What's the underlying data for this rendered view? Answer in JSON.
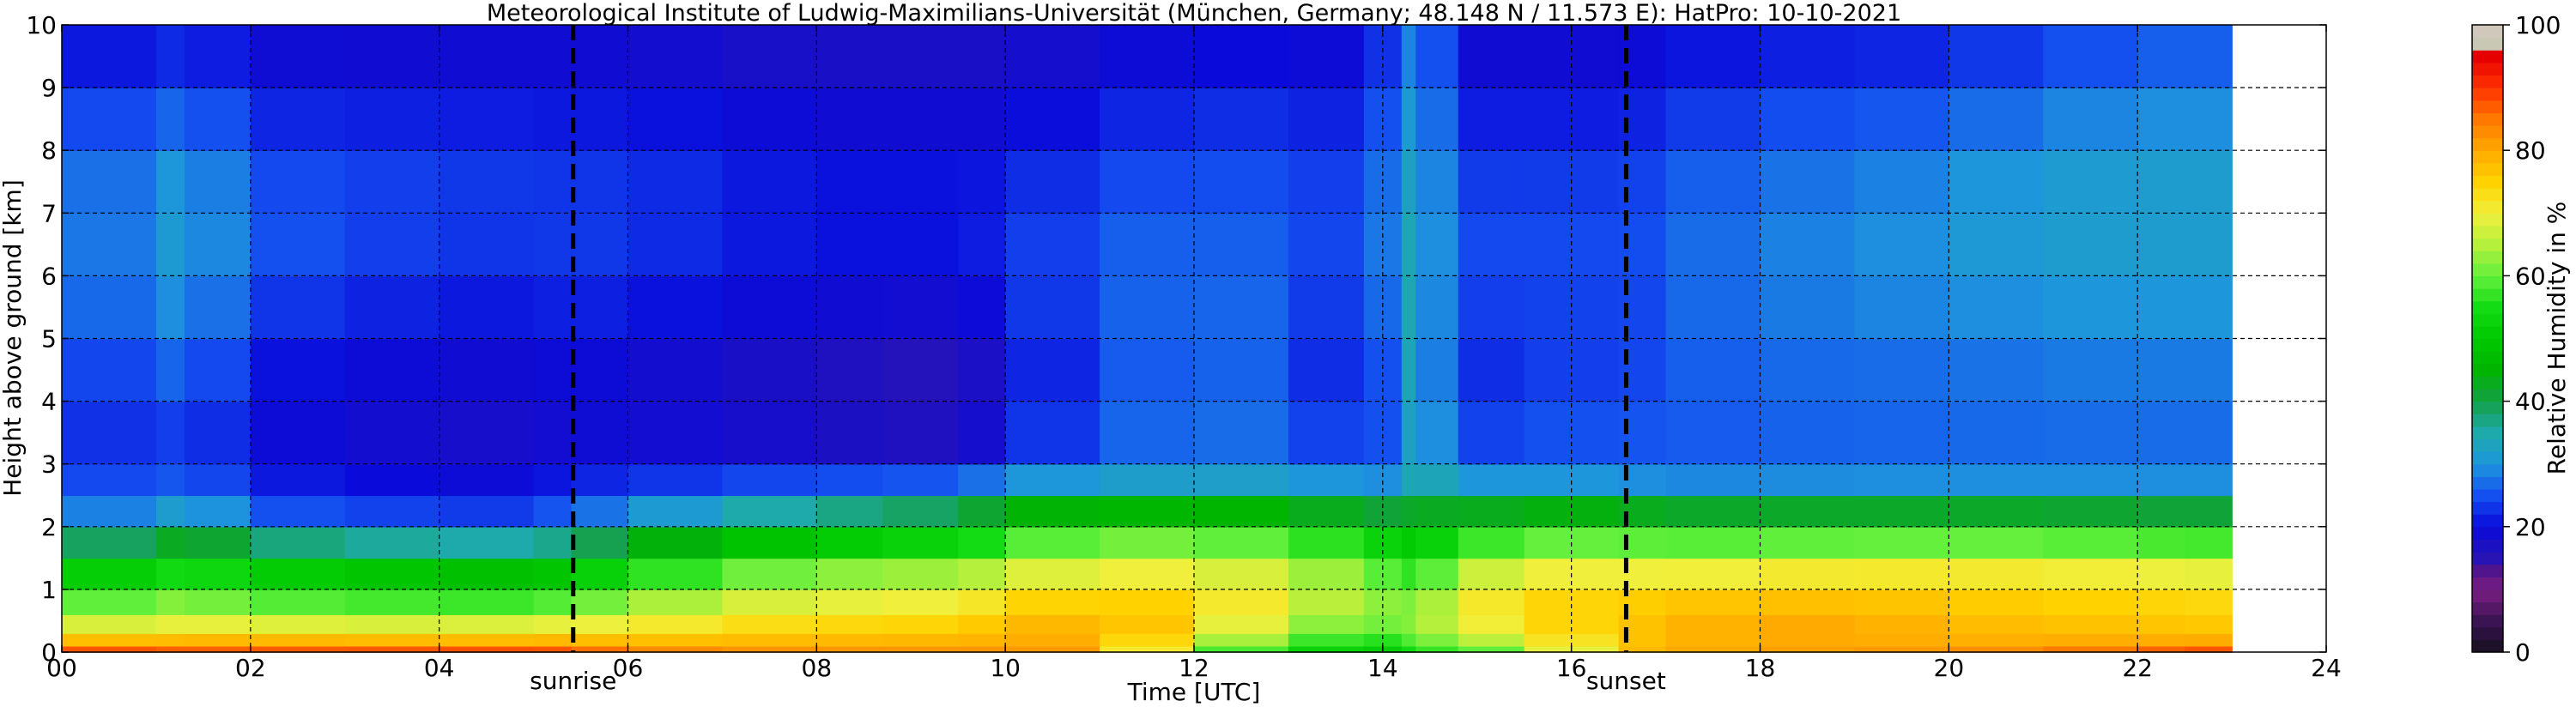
{
  "chart_data": {
    "type": "heatmap",
    "title": "Meteorological Institute of Ludwig-Maximilians-Universität (München, Germany; 48.148 N / 11.573 E):    HatPro: 10-10-2021",
    "xlabel": "Time [UTC]",
    "ylabel": "Height above ground [km]",
    "colorbar_label": "Relative Humidity in %",
    "xlim": [
      0,
      24
    ],
    "ylim": [
      0,
      10
    ],
    "x_ticks": [
      0,
      2,
      4,
      6,
      8,
      10,
      12,
      14,
      16,
      18,
      20,
      22,
      24
    ],
    "x_tick_labels": [
      "00",
      "02",
      "04",
      "06",
      "08",
      "10",
      "12",
      "14",
      "16",
      "18",
      "20",
      "22",
      "24"
    ],
    "y_ticks": [
      0,
      1,
      2,
      3,
      4,
      5,
      6,
      7,
      8,
      9,
      10
    ],
    "y_tick_labels": [
      "0",
      "1",
      "2",
      "3",
      "4",
      "5",
      "6",
      "7",
      "8",
      "9",
      "10"
    ],
    "colorbar_range": [
      0,
      100
    ],
    "colorbar_ticks": [
      0,
      20,
      40,
      60,
      80,
      100
    ],
    "grid": true,
    "data_end_time": 23.0,
    "events": [
      {
        "label": "sunrise",
        "time": 5.42
      },
      {
        "label": "sunset",
        "time": 16.58
      }
    ],
    "times": [
      0,
      1,
      1.3,
      2,
      3,
      4,
      5,
      5.4,
      6,
      7,
      8,
      8.7,
      9.5,
      10,
      11,
      12,
      13,
      13.8,
      14.2,
      14.35,
      14.8,
      15.5,
      16.5,
      17,
      18,
      19,
      20,
      21,
      22,
      22.5,
      23
    ],
    "heights": [
      0,
      0.1,
      0.3,
      0.6,
      1,
      1.5,
      2,
      2.5,
      3,
      4,
      5,
      6,
      7,
      8,
      9,
      10
    ],
    "relative_humidity": [
      [
        94,
        82,
        73,
        62,
        55,
        45,
        30,
        26,
        24,
        22,
        25,
        26,
        26,
        25,
        22,
        19
      ],
      [
        92,
        82,
        73,
        64,
        58,
        48,
        32,
        26,
        22,
        23,
        27,
        29,
        30,
        28,
        23,
        20
      ],
      [
        91,
        82,
        74,
        66,
        60,
        52,
        38,
        30,
        24,
        26,
        30,
        32,
        33,
        30,
        25,
        21
      ],
      [
        92,
        82,
        74,
        63,
        55,
        48,
        28,
        23,
        20,
        20,
        22,
        25,
        26,
        24,
        21,
        18
      ],
      [
        92,
        82,
        74,
        63,
        55,
        46,
        27,
        22,
        19,
        19,
        21,
        24,
        25,
        23,
        20,
        18
      ],
      [
        93,
        82,
        73,
        62,
        52,
        44,
        26,
        21,
        18,
        18,
        20,
        22,
        24,
        23,
        20,
        18
      ],
      [
        94,
        82,
        74,
        64,
        52,
        44,
        26,
        21,
        18,
        18,
        20,
        22,
        24,
        22,
        20,
        18
      ],
      [
        92,
        82,
        74,
        65,
        55,
        46,
        30,
        24,
        20,
        19,
        21,
        23,
        24,
        22,
        20,
        18
      ],
      [
        88,
        80,
        74,
        66,
        58,
        50,
        32,
        24,
        20,
        18,
        20,
        22,
        24,
        22,
        20,
        18
      ],
      [
        85,
        80,
        75,
        70,
        64,
        55,
        40,
        28,
        20,
        17,
        19,
        21,
        22,
        21,
        19,
        17
      ],
      [
        84,
        80,
        76,
        72,
        66,
        58,
        42,
        30,
        19,
        16,
        18,
        20,
        21,
        20,
        18,
        17
      ],
      [
        84,
        80,
        76,
        72,
        67,
        59,
        45,
        31,
        19,
        14,
        18,
        20,
        21,
        20,
        18,
        17
      ],
      [
        84,
        80,
        77,
        73,
        68,
        60,
        46,
        32,
        19,
        14,
        17,
        20,
        21,
        20,
        18,
        17
      ],
      [
        84,
        80,
        78,
        76,
        70,
        62,
        52,
        36,
        22,
        18,
        20,
        22,
        22,
        20,
        18,
        17
      ],
      [
        82,
        80,
        80,
        79,
        74,
        68,
        55,
        36,
        27,
        25,
        25,
        26,
        25,
        23,
        20,
        18
      ],
      [
        58,
        65,
        72,
        75,
        72,
        66,
        55,
        36,
        28,
        26,
        27,
        27,
        26,
        24,
        21,
        19
      ],
      [
        52,
        58,
        62,
        68,
        70,
        64,
        54,
        36,
        28,
        26,
        26,
        26,
        25,
        24,
        21,
        19
      ],
      [
        48,
        52,
        58,
        62,
        62,
        58,
        50,
        32,
        24,
        18,
        20,
        22,
        24,
        22,
        20,
        18
      ],
      [
        50,
        55,
        60,
        64,
        62,
        55,
        48,
        34,
        28,
        30,
        32,
        33,
        32,
        30,
        28,
        25
      ],
      [
        55,
        58,
        62,
        62,
        58,
        52,
        48,
        38,
        36,
        36,
        36,
        36,
        35,
        34,
        32,
        30
      ],
      [
        56,
        60,
        66,
        70,
        68,
        60,
        50,
        34,
        26,
        20,
        21,
        23,
        24,
        22,
        20,
        18
      ],
      [
        58,
        65,
        72,
        74,
        74,
        66,
        54,
        34,
        26,
        24,
        25,
        26,
        25,
        23,
        20,
        18
      ],
      [
        78,
        76,
        76,
        76,
        74,
        66,
        54,
        34,
        26,
        24,
        22,
        23,
        24,
        22,
        20,
        18
      ],
      [
        80,
        78,
        78,
        78,
        74,
        66,
        52,
        32,
        26,
        25,
        26,
        26,
        26,
        24,
        21,
        19
      ],
      [
        82,
        80,
        80,
        80,
        74,
        67,
        52,
        32,
        26,
        26,
        27,
        28,
        28,
        26,
        23,
        20
      ],
      [
        82,
        80,
        80,
        80,
        75,
        68,
        52,
        32,
        27,
        26,
        28,
        29,
        29,
        27,
        23,
        20
      ],
      [
        84,
        80,
        78,
        78,
        74,
        68,
        52,
        32,
        27,
        26,
        28,
        30,
        30,
        28,
        24,
        21
      ],
      [
        86,
        81,
        78,
        77,
        74,
        68,
        52,
        32,
        27,
        27,
        29,
        31,
        32,
        30,
        26,
        22
      ],
      [
        90,
        82,
        77,
        76,
        73,
        67,
        50,
        32,
        27,
        27,
        29,
        31,
        32,
        31,
        28,
        24
      ],
      [
        92,
        82,
        77,
        76,
        73,
        66,
        50,
        32,
        27,
        27,
        29,
        31,
        32,
        31,
        28,
        24
      ],
      [
        93,
        83,
        77,
        75,
        72,
        66,
        50,
        32,
        27,
        27,
        29,
        31,
        32,
        31,
        28,
        24
      ]
    ],
    "colormap": [
      [
        0,
        "#14101e"
      ],
      [
        5,
        "#3b1454"
      ],
      [
        10,
        "#7a1e82"
      ],
      [
        13,
        "#50148c"
      ],
      [
        15,
        "#2814b4"
      ],
      [
        20,
        "#0a0ada"
      ],
      [
        25,
        "#1450f0"
      ],
      [
        30,
        "#1e96dc"
      ],
      [
        35,
        "#1eaaaa"
      ],
      [
        40,
        "#14a046"
      ],
      [
        45,
        "#00b400"
      ],
      [
        50,
        "#00c800"
      ],
      [
        55,
        "#14dc14"
      ],
      [
        60,
        "#64f03c"
      ],
      [
        65,
        "#b4f03c"
      ],
      [
        70,
        "#f0f03c"
      ],
      [
        75,
        "#ffd200"
      ],
      [
        80,
        "#ffaa00"
      ],
      [
        85,
        "#ff7800"
      ],
      [
        90,
        "#ff3200"
      ],
      [
        95,
        "#e60000"
      ],
      [
        97,
        "#c8c8b4"
      ],
      [
        100,
        "#d2c8be"
      ]
    ]
  }
}
